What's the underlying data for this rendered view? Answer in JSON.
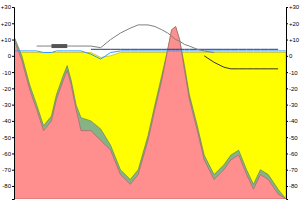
{
  "chart_data": {
    "type": "area",
    "x": [
      0,
      8,
      16,
      23,
      30,
      38,
      43,
      50,
      54,
      58,
      63,
      68,
      78,
      88,
      98,
      108,
      118,
      126,
      136,
      143,
      150,
      156,
      160,
      164,
      168,
      173,
      178,
      186,
      193,
      203,
      213,
      220,
      228,
      236,
      243,
      250,
      258,
      268,
      276
    ],
    "xlim": [
      0,
      276
    ],
    "ylim": [
      -88,
      30
    ],
    "yticks": [
      {
        "value": 30,
        "label": "+30"
      },
      {
        "value": 20,
        "label": "+20"
      },
      {
        "value": 10,
        "label": "+10"
      },
      0,
      -10,
      -20,
      -30,
      -40,
      -50,
      -60,
      -70,
      -80
    ],
    "tick_labels": "y",
    "grid": false,
    "series": [
      {
        "type": "area",
        "color": "#ffff00",
        "values": [
          2,
          2,
          2,
          2,
          2,
          2,
          2,
          2,
          2,
          2,
          2,
          2,
          2,
          -1,
          0,
          2,
          2,
          2,
          2,
          2,
          2,
          2,
          2,
          2,
          2,
          2,
          2,
          2,
          2,
          2,
          2,
          2,
          2,
          2,
          2,
          2,
          2,
          2,
          2
        ]
      },
      {
        "type": "area",
        "color": "#86b386",
        "values": [
          12,
          0,
          -18,
          -30,
          -43,
          -37,
          -24,
          -12,
          -6,
          -15,
          -30,
          -38,
          -40,
          -45,
          -55,
          -70,
          -76,
          -70,
          -49,
          -30,
          -12,
          4,
          16,
          18,
          10,
          -6,
          -24,
          -43,
          -61,
          -73,
          -67,
          -61,
          -58,
          -70,
          -79,
          -70,
          -73,
          -82,
          -88
        ]
      },
      {
        "type": "area",
        "color": "#ff8f8f",
        "values": [
          10,
          -3,
          -21,
          -33,
          -46,
          -40,
          -27,
          -15,
          -9,
          -18,
          -33,
          -46,
          -46,
          -52,
          -58,
          -73,
          -79,
          -73,
          -52,
          -33,
          -15,
          4,
          16,
          18,
          10,
          -9,
          -27,
          -46,
          -64,
          -76,
          -70,
          -64,
          -61,
          -73,
          -82,
          -73,
          -76,
          -85,
          -88
        ]
      },
      {
        "type": "line",
        "color": "#3399ff",
        "line_style": "solid",
        "values": [
          3,
          3,
          3,
          3,
          2,
          2,
          3,
          3,
          3,
          3,
          3,
          3,
          1,
          -2,
          2,
          3,
          3,
          3,
          3,
          3,
          3,
          3,
          3,
          3,
          3,
          3,
          3,
          3,
          3,
          3,
          3,
          3,
          3,
          3,
          3,
          3,
          3,
          3,
          3
        ]
      },
      {
        "type": "line",
        "color": "#1f3a6e",
        "line_style": "solid",
        "values": [
          null,
          null,
          null,
          null,
          null,
          null,
          null,
          null,
          null,
          null,
          null,
          null,
          4,
          4,
          4,
          4,
          4,
          4,
          4,
          4,
          4,
          4,
          4,
          4,
          4,
          4,
          4,
          4,
          4,
          4,
          4,
          4,
          4,
          4,
          4,
          4,
          4,
          4,
          null
        ]
      },
      {
        "type": "line",
        "color": "#808080",
        "line_style": "solid",
        "values": [
          null,
          null,
          null,
          6,
          6,
          6,
          6,
          6,
          6,
          6,
          6,
          6,
          6,
          5,
          10,
          14,
          17,
          19,
          19,
          18,
          16,
          14,
          12,
          10,
          9,
          7,
          6,
          4,
          3,
          2,
          null,
          null,
          null,
          null,
          null,
          null,
          null,
          null,
          null
        ]
      },
      {
        "type": "line",
        "color": "#333333",
        "line_style": "solid",
        "values": [
          null,
          null,
          null,
          null,
          null,
          null,
          null,
          null,
          null,
          null,
          null,
          null,
          null,
          null,
          null,
          null,
          null,
          null,
          null,
          null,
          null,
          null,
          null,
          null,
          null,
          null,
          null,
          null,
          0,
          -4,
          -7,
          -8,
          -8,
          -8,
          -8,
          -8,
          -8,
          -8,
          null
        ]
      },
      {
        "type": "line",
        "color": "#555555",
        "line_style": "thick",
        "values": [
          null,
          null,
          null,
          null,
          null,
          6,
          6,
          6,
          6,
          null,
          null,
          null,
          null,
          null,
          null,
          null,
          null,
          null,
          null,
          null,
          null,
          null,
          null,
          null,
          null,
          null,
          null,
          null,
          null,
          null,
          null,
          null,
          null,
          null,
          null,
          null,
          null,
          null,
          null
        ]
      }
    ]
  }
}
